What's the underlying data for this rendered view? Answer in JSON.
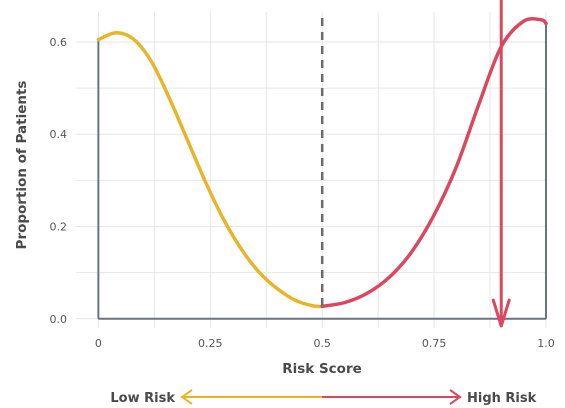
{
  "chart_data": {
    "type": "line",
    "xlabel": "Risk Score",
    "ylabel": "Proportion of Patients",
    "xlim": [
      -0.05,
      1.0
    ],
    "ylim": [
      -0.02,
      0.665
    ],
    "x_ticks": [
      {
        "value": 0,
        "label": "0"
      },
      {
        "value": 0.25,
        "label": "0.25"
      },
      {
        "value": 0.5,
        "label": "0.5"
      },
      {
        "value": 0.75,
        "label": "0.75"
      },
      {
        "value": 1.0,
        "label": "1.0"
      }
    ],
    "y_ticks": [
      {
        "value": 0.0,
        "label": "0.0"
      },
      {
        "value": 0.2,
        "label": "0.2"
      },
      {
        "value": 0.4,
        "label": "0.4"
      },
      {
        "value": 0.6,
        "label": "0.6"
      }
    ],
    "grid": true,
    "threshold": 0.5,
    "marker_arrow_x": 0.9,
    "series": [
      {
        "color": "#e8b52a",
        "x": [
          0.0,
          0.04,
          0.08,
          0.12,
          0.16,
          0.2,
          0.24,
          0.28,
          0.32,
          0.36,
          0.4,
          0.44,
          0.48,
          0.5
        ],
        "values": [
          0.605,
          0.62,
          0.605,
          0.555,
          0.475,
          0.385,
          0.295,
          0.215,
          0.15,
          0.1,
          0.065,
          0.04,
          0.028,
          0.027
        ]
      },
      {
        "color": "#d9485f",
        "x": [
          0.5,
          0.55,
          0.6,
          0.65,
          0.7,
          0.75,
          0.8,
          0.85,
          0.9,
          0.95,
          0.99,
          1.0
        ],
        "values": [
          0.027,
          0.035,
          0.055,
          0.09,
          0.145,
          0.225,
          0.33,
          0.465,
          0.59,
          0.645,
          0.648,
          0.64
        ]
      }
    ],
    "risk_scale": {
      "low_label": "Low Risk",
      "high_label": "High Risk",
      "low_color": "#e8b52a",
      "high_color": "#d9485f"
    }
  }
}
